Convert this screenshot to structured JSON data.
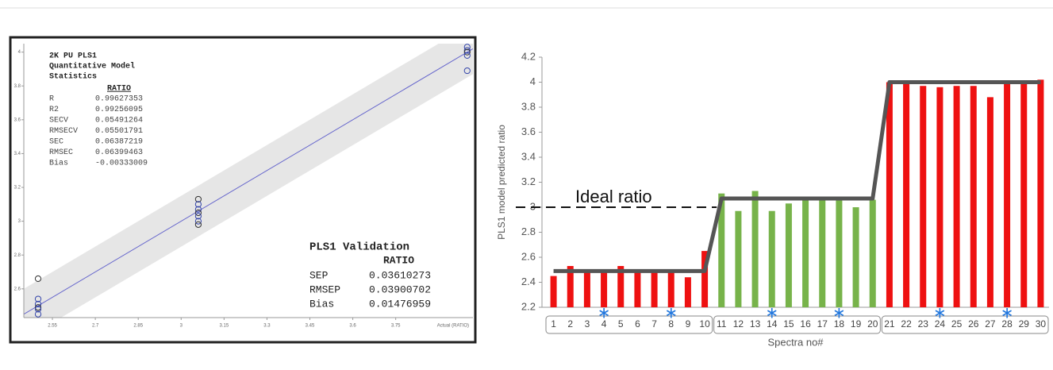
{
  "chart_data": [
    {
      "type": "scatter",
      "stats_title": [
        "2K PU PLS1",
        "Quantitative Model",
        "Statistics"
      ],
      "stats_header": "RATIO",
      "stats": [
        {
          "name": "R",
          "value": 0.99627353
        },
        {
          "name": "R2",
          "value": 0.99256095
        },
        {
          "name": "SECV",
          "value": 0.05491264
        },
        {
          "name": "RMSECV",
          "value": 0.05501791
        },
        {
          "name": "SEC",
          "value": 0.06387219
        },
        {
          "name": "RMSEC",
          "value": 0.06399463
        },
        {
          "name": "Bias",
          "value": -0.00333009
        }
      ],
      "validation_title": "PLS1 Validation",
      "validation_header": "RATIO",
      "validation": [
        {
          "name": "SEP",
          "value": 0.03610273
        },
        {
          "name": "RMSEP",
          "value": 0.03900702
        },
        {
          "name": "Bias",
          "value": 0.01476959
        }
      ],
      "xlabel": "Actual (RATIO)",
      "x": [
        2.5,
        2.5,
        2.5,
        2.5,
        2.5,
        2.5,
        3.06,
        3.06,
        3.06,
        3.06,
        3.06,
        3.06,
        3.06,
        4.0,
        4.0,
        4.0,
        4.0,
        4.0
      ],
      "y": [
        2.66,
        2.54,
        2.51,
        2.49,
        2.48,
        2.45,
        3.13,
        3.1,
        3.07,
        3.05,
        3.03,
        3.0,
        2.98,
        4.03,
        4.01,
        4.0,
        3.98,
        3.89
      ],
      "color": "#3344aa",
      "xlim": [
        2.45,
        4.02
      ],
      "ylim": [
        2.43,
        4.05
      ],
      "xticks": [
        2.55,
        2.7,
        2.85,
        3,
        3.15,
        3.3,
        3.45,
        3.6,
        3.75
      ],
      "yticks": [
        2.6,
        2.8,
        3,
        3.2,
        3.4,
        3.6,
        3.8,
        4
      ]
    },
    {
      "type": "bar",
      "ylabel": "PLS1 model predicted ratio",
      "xlabel": "Spectra no#",
      "categories": [
        "1",
        "2",
        "3",
        "4",
        "5",
        "6",
        "7",
        "8",
        "9",
        "10",
        "11",
        "12",
        "13",
        "14",
        "15",
        "16",
        "17",
        "18",
        "19",
        "20",
        "21",
        "22",
        "23",
        "24",
        "25",
        "26",
        "27",
        "28",
        "29",
        "30"
      ],
      "series": [
        {
          "type": "bar",
          "colors": [
            "#ee1111",
            "#ee1111",
            "#ee1111",
            "#ee1111",
            "#ee1111",
            "#ee1111",
            "#ee1111",
            "#ee1111",
            "#ee1111",
            "#ee1111",
            "#77b34a",
            "#77b34a",
            "#77b34a",
            "#77b34a",
            "#77b34a",
            "#77b34a",
            "#77b34a",
            "#77b34a",
            "#77b34a",
            "#77b34a",
            "#ee1111",
            "#ee1111",
            "#ee1111",
            "#ee1111",
            "#ee1111",
            "#ee1111",
            "#ee1111",
            "#ee1111",
            "#ee1111",
            "#ee1111"
          ],
          "values": [
            2.45,
            2.53,
            2.48,
            2.5,
            2.53,
            2.5,
            2.48,
            2.48,
            2.44,
            2.65,
            3.11,
            2.97,
            3.13,
            2.97,
            3.03,
            3.07,
            3.07,
            3.06,
            3.0,
            3.06,
            4.0,
            4.0,
            3.97,
            3.96,
            3.97,
            3.97,
            3.88,
            4.0,
            4.0,
            4.02
          ]
        },
        {
          "type": "line",
          "color": "#555555",
          "values": [
            2.49,
            2.49,
            2.49,
            2.49,
            2.49,
            2.49,
            2.49,
            2.49,
            2.49,
            2.49,
            3.07,
            3.07,
            3.07,
            3.07,
            3.07,
            3.07,
            3.07,
            3.07,
            3.07,
            3.07,
            4.0,
            4.0,
            4.0,
            4.0,
            4.0,
            4.0,
            4.0,
            4.0,
            4.0,
            4.0
          ]
        }
      ],
      "starred": [
        "4",
        "8",
        "14",
        "18",
        "24",
        "28"
      ],
      "star_color": "#2277dd",
      "reference": {
        "label": "Ideal ratio",
        "value": 3
      },
      "ylim": [
        2.2,
        4.2
      ],
      "yticks": [
        2.2,
        2.4,
        2.6,
        2.8,
        3,
        3.2,
        3.4,
        3.6,
        3.8,
        4,
        4.2
      ]
    }
  ]
}
